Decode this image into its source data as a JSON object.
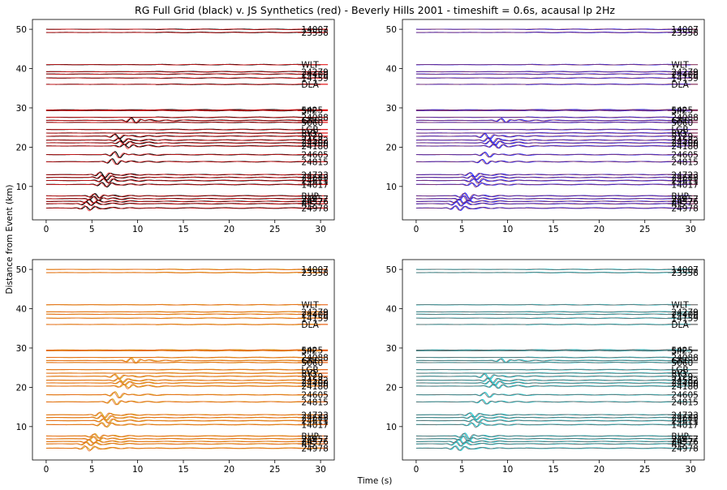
{
  "figure": {
    "title": "RG Full Grid (black) v. JS Synthetics (red) - Beverly Hills 2001 - timeshift = 0.6s, acausal lp 2Hz",
    "xlabel": "Time (s)",
    "ylabel": "Distance from Event (km)"
  },
  "chart_data": [
    {
      "type": "line",
      "panel": "top-left",
      "trace_colors": [
        "#000000",
        "#e31a1c"
      ],
      "xlim": [
        -1.5,
        31.5
      ],
      "ylim": [
        1.5,
        52.5
      ],
      "xticks": [
        0,
        5,
        10,
        15,
        20,
        25,
        30
      ],
      "yticks": [
        10,
        20,
        30,
        40,
        50
      ],
      "grid": false
    },
    {
      "type": "line",
      "panel": "top-right",
      "trace_colors": [
        "#1f1fff",
        "#8b3a62"
      ],
      "xlim": [
        -1.5,
        31.5
      ],
      "ylim": [
        1.5,
        52.5
      ],
      "xticks": [
        0,
        5,
        10,
        15,
        20,
        25,
        30
      ],
      "yticks": [
        10,
        20,
        30,
        40,
        50
      ],
      "grid": false
    },
    {
      "type": "line",
      "panel": "bottom-left",
      "trace_colors": [
        "#d9a21a",
        "#e8641a"
      ],
      "xlim": [
        -1.5,
        31.5
      ],
      "ylim": [
        1.5,
        52.5
      ],
      "xticks": [
        0,
        5,
        10,
        15,
        20,
        25,
        30
      ],
      "yticks": [
        10,
        20,
        30,
        40,
        50
      ],
      "grid": false
    },
    {
      "type": "line",
      "panel": "bottom-right",
      "trace_colors": [
        "#20c8d0",
        "#666666"
      ],
      "xlim": [
        -1.5,
        31.5
      ],
      "ylim": [
        1.5,
        52.5
      ],
      "xticks": [
        0,
        5,
        10,
        15,
        20,
        25,
        30
      ],
      "yticks": [
        10,
        20,
        30,
        40,
        50
      ],
      "grid": false
    }
  ],
  "stations": [
    {
      "name": "14007",
      "distance_km": 50.0,
      "arrival_s": 0
    },
    {
      "name": "23558",
      "distance_km": 49.2,
      "arrival_s": 0
    },
    {
      "name": "WLT",
      "distance_km": 41.0,
      "arrival_s": 0
    },
    {
      "name": "24279",
      "distance_km": 39.2,
      "arrival_s": 0
    },
    {
      "name": "24400",
      "distance_km": 38.6,
      "arrival_s": 0
    },
    {
      "name": "14159",
      "distance_km": 37.6,
      "arrival_s": 0
    },
    {
      "name": "DLA",
      "distance_km": 36.0,
      "arrival_s": 0
    },
    {
      "name": "5425",
      "distance_km": 29.5,
      "arrival_s": 0
    },
    {
      "name": "SPF",
      "distance_km": 29.3,
      "arrival_s": 0
    },
    {
      "name": "24088",
      "distance_km": 27.6,
      "arrival_s": 0
    },
    {
      "name": "GRF",
      "distance_km": 26.8,
      "arrival_s": 9.6
    },
    {
      "name": "5060",
      "distance_km": 26.3,
      "arrival_s": 0
    },
    {
      "name": "LGB",
      "distance_km": 24.5,
      "arrival_s": 0
    },
    {
      "name": "RIO",
      "distance_km": 23.6,
      "arrival_s": 0
    },
    {
      "name": "5129",
      "distance_km": 22.8,
      "arrival_s": 7.8
    },
    {
      "name": "24582",
      "distance_km": 21.8,
      "arrival_s": 8.2
    },
    {
      "name": "24400",
      "distance_km": 21.1,
      "arrival_s": 8.4
    },
    {
      "name": "24180",
      "distance_km": 20.3,
      "arrival_s": 8.8
    },
    {
      "name": "24605",
      "distance_km": 18.1,
      "arrival_s": 7.8
    },
    {
      "name": "24815",
      "distance_km": 16.3,
      "arrival_s": 7.5
    },
    {
      "name": "24723",
      "distance_km": 13.0,
      "arrival_s": 6.2
    },
    {
      "name": "24688",
      "distance_km": 12.3,
      "arrival_s": 6.4
    },
    {
      "name": "24611",
      "distance_km": 11.5,
      "arrival_s": 6.6
    },
    {
      "name": "14017",
      "distance_km": 10.5,
      "arrival_s": 6.4
    },
    {
      "name": "BHP",
      "distance_km": 7.6,
      "arrival_s": 5.6
    },
    {
      "name": "24957",
      "distance_km": 6.9,
      "arrival_s": 5.5
    },
    {
      "name": "24576",
      "distance_km": 6.2,
      "arrival_s": 5.0
    },
    {
      "name": "RIS",
      "distance_km": 5.6,
      "arrival_s": 4.7
    },
    {
      "name": "24978",
      "distance_km": 4.5,
      "arrival_s": 4.6
    }
  ]
}
